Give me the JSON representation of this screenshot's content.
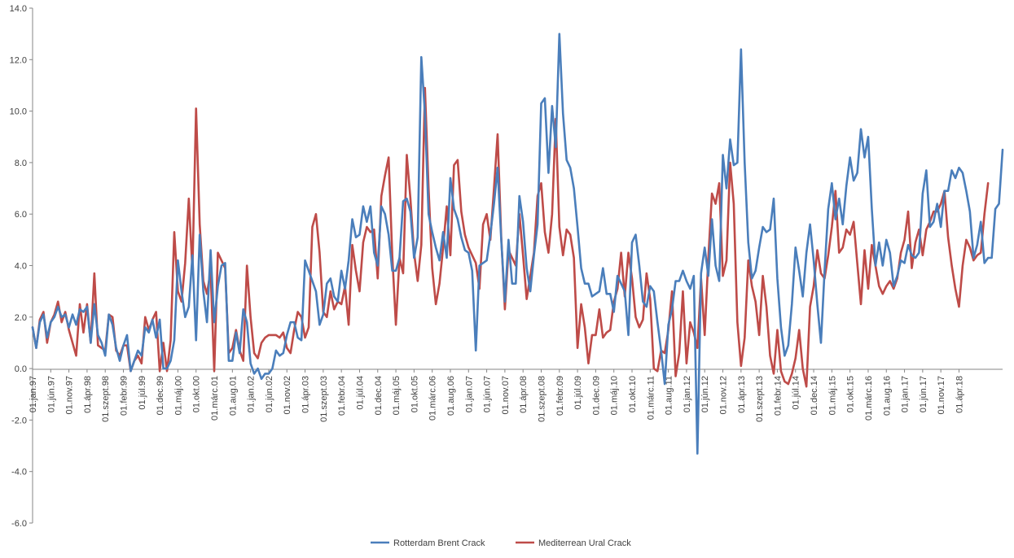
{
  "chart_data": {
    "type": "line",
    "title": "",
    "xlabel": "",
    "ylabel": "",
    "ylim": [
      -6.0,
      14.0
    ],
    "y_ticks": [
      "14.0",
      "12.0",
      "10.0",
      "8.0",
      "6.0",
      "4.0",
      "2.0",
      "0.0",
      "-2.0",
      "-4.0",
      "-6.0"
    ],
    "x_start": "1997-01",
    "x_end": "2018-08",
    "x_tick_step_months": 5,
    "x_tick_labels": [
      "01.jan.97",
      "01.jún.97",
      "01.nov.97",
      "01.ápr.98",
      "01.szept.98",
      "01.febr.99",
      "01.júl.99",
      "01.dec.99",
      "01.máj.00",
      "01.okt.00",
      "01.márc.01",
      "01.aug.01",
      "01.jan.02",
      "01.jún.02",
      "01.nov.02",
      "01.ápr.03",
      "01.szept.03",
      "01.febr.04",
      "01.júl.04",
      "01.dec.04",
      "01.máj.05",
      "01.okt.05",
      "01.márc.06",
      "01.aug.06",
      "01.jan.07",
      "01.jún.07",
      "01.nov.07",
      "01.ápr.08",
      "01.szept.08",
      "01.febr.09",
      "01.júl.09",
      "01.dec.09",
      "01.máj.10",
      "01.okt.10",
      "01.márc.11",
      "01.aug.11",
      "01.jan.12",
      "01.jún.12",
      "01.nov.12",
      "01.ápr.13",
      "01.szept.13",
      "01.febr.14",
      "01.júl.14",
      "01.dec.14",
      "01.máj.15",
      "01.okt.15",
      "01.márc.16",
      "01.aug.16",
      "01.jan.17",
      "01.jún.17",
      "01.nov.17",
      "01.ápr.18"
    ],
    "grid": false,
    "legend_position": "bottom",
    "series": [
      {
        "name": "Rotterdam Brent Crack",
        "color": "#4a7ebb",
        "values": [
          1.6,
          0.8,
          1.8,
          2.1,
          1.2,
          1.8,
          2.0,
          2.4,
          2.0,
          2.1,
          1.6,
          2.1,
          1.7,
          2.3,
          2.2,
          2.4,
          1.0,
          2.5,
          1.3,
          1.0,
          0.5,
          2.1,
          1.7,
          0.8,
          0.3,
          0.9,
          1.3,
          -0.1,
          0.3,
          0.7,
          0.5,
          1.6,
          1.4,
          1.9,
          1.2,
          1.9,
          0.0,
          0.0,
          0.3,
          1.1,
          4.2,
          3.0,
          2.0,
          2.4,
          4.4,
          1.1,
          5.2,
          3.0,
          1.8,
          4.6,
          1.8,
          3.2,
          4.0,
          4.1,
          0.3,
          0.3,
          1.4,
          0.6,
          2.3,
          1.8,
          0.2,
          -0.2,
          0.0,
          -0.4,
          -0.2,
          -0.2,
          0.0,
          0.7,
          0.5,
          0.6,
          1.3,
          1.8,
          1.8,
          1.2,
          1.1,
          4.2,
          3.8,
          3.4,
          3.0,
          1.7,
          2.1,
          3.3,
          3.5,
          2.8,
          2.6,
          3.8,
          3.1,
          4.2,
          5.8,
          5.1,
          5.2,
          6.3,
          5.7,
          6.3,
          4.5,
          4.0,
          6.3,
          6.0,
          5.2,
          3.8,
          3.8,
          4.3,
          6.5,
          6.6,
          6.1,
          4.3,
          5.1,
          12.1,
          9.9,
          6.0,
          5.3,
          4.7,
          4.2,
          5.3,
          4.3,
          7.4,
          6.2,
          5.8,
          5.1,
          4.6,
          4.5,
          3.8,
          0.7,
          4.0,
          4.1,
          4.2,
          5.2,
          6.4,
          7.8,
          5.0,
          2.6,
          5.0,
          3.3,
          3.3,
          6.7,
          5.7,
          3.9,
          3.0,
          4.4,
          5.6,
          10.3,
          10.5,
          7.6,
          10.2,
          8.6,
          13.0,
          9.9,
          8.1,
          7.8,
          7.0,
          5.5,
          3.9,
          3.3,
          3.3,
          2.8,
          2.9,
          3.0,
          3.9,
          2.9,
          2.9,
          2.2,
          3.6,
          3.3,
          3.0,
          1.3,
          4.9,
          5.2,
          4.0,
          2.6,
          2.4,
          3.2,
          3.0,
          1.8,
          0.7,
          -0.6,
          1.7,
          2.3,
          3.4,
          3.4,
          3.8,
          3.4,
          3.1,
          3.6,
          -3.3,
          3.7,
          4.7,
          3.6,
          5.8,
          4.0,
          3.4,
          8.3,
          7.0,
          8.9,
          7.9,
          8.0,
          12.4,
          8.0,
          4.9,
          3.5,
          3.8,
          4.7,
          5.5,
          5.3,
          5.4,
          6.6,
          3.5,
          1.6,
          0.5,
          0.9,
          2.5,
          4.7,
          3.8,
          2.8,
          4.5,
          5.6,
          4.2,
          2.5,
          1.0,
          3.8,
          6.2,
          7.2,
          5.8,
          6.6,
          5.6,
          7.1,
          8.2,
          7.3,
          7.6,
          9.3,
          8.2,
          9.0,
          6.2,
          4.0,
          4.9,
          4.0,
          5.0,
          4.5,
          3.2,
          3.6,
          4.2,
          4.1,
          4.8,
          4.4,
          4.3,
          4.5,
          6.8,
          7.7,
          5.5,
          5.7,
          6.4,
          5.5,
          6.9,
          6.9,
          7.7,
          7.4,
          7.8,
          7.6,
          6.9,
          6.1,
          4.3,
          4.8,
          5.7,
          4.1,
          4.3,
          4.3,
          6.2,
          6.4,
          8.5
        ]
      },
      {
        "name": "Mediterrean Ural Crack",
        "color": "#be4b48",
        "values": [
          1.6,
          0.8,
          1.9,
          2.2,
          1.0,
          1.8,
          2.1,
          2.6,
          1.8,
          2.2,
          1.5,
          1.0,
          0.5,
          2.5,
          1.4,
          2.5,
          1.0,
          3.7,
          0.9,
          0.8,
          0.7,
          2.1,
          2.0,
          0.7,
          0.5,
          0.9,
          0.9,
          -0.1,
          0.3,
          0.5,
          0.2,
          2.0,
          1.5,
          1.9,
          2.2,
          -0.1,
          1.0,
          -0.1,
          1.1,
          5.3,
          3.0,
          2.6,
          4.1,
          6.6,
          3.8,
          10.1,
          5.6,
          3.4,
          2.9,
          3.8,
          -0.1,
          4.5,
          4.2,
          3.9,
          0.6,
          0.8,
          1.5,
          0.7,
          0.3,
          4.0,
          2.0,
          0.6,
          0.4,
          1.0,
          1.2,
          1.3,
          1.3,
          1.3,
          1.2,
          1.4,
          0.8,
          0.6,
          1.5,
          2.2,
          2.0,
          1.2,
          1.6,
          5.5,
          6.0,
          4.5,
          2.2,
          2.0,
          3.0,
          2.3,
          2.6,
          2.5,
          3.2,
          1.7,
          4.8,
          3.8,
          3.0,
          4.9,
          5.5,
          5.3,
          5.4,
          3.5,
          6.7,
          7.5,
          8.2,
          4.4,
          1.7,
          4.3,
          3.7,
          8.3,
          6.6,
          4.5,
          3.4,
          4.8,
          10.9,
          7.0,
          3.9,
          2.5,
          3.3,
          4.7,
          6.3,
          4.4,
          7.9,
          8.1,
          6.1,
          5.2,
          4.7,
          4.4,
          4.1,
          3.1,
          5.6,
          6.0,
          5.0,
          7.0,
          9.1,
          5.1,
          2.3,
          4.6,
          4.3,
          4.0,
          6.0,
          4.4,
          2.7,
          3.6,
          4.5,
          6.7,
          7.2,
          5.3,
          4.5,
          6.0,
          9.7,
          5.5,
          4.4,
          5.4,
          5.2,
          4.3,
          0.8,
          2.5,
          1.6,
          0.2,
          1.3,
          1.3,
          2.3,
          1.2,
          1.4,
          1.5,
          2.6,
          3.1,
          4.5,
          2.8,
          4.5,
          3.5,
          2.0,
          1.6,
          1.9,
          3.7,
          2.7,
          0.0,
          -0.1,
          0.7,
          0.6,
          1.5,
          3.0,
          -0.3,
          0.6,
          3.0,
          0.2,
          1.8,
          1.4,
          0.8,
          3.5,
          1.3,
          4.3,
          6.8,
          6.4,
          7.2,
          3.6,
          4.2,
          8.0,
          6.4,
          1.8,
          0.1,
          1.2,
          4.2,
          3.2,
          2.6,
          1.3,
          3.6,
          2.4,
          0.5,
          -0.2,
          1.5,
          -0.1,
          -0.5,
          -0.6,
          -0.2,
          0.4,
          1.5,
          0.0,
          -0.7,
          2.4,
          3.2,
          4.6,
          3.7,
          3.5,
          4.4,
          5.5,
          6.9,
          4.5,
          4.7,
          5.4,
          5.2,
          5.7,
          4.1,
          2.5,
          4.6,
          3.1,
          4.8,
          4.0,
          3.2,
          2.9,
          3.2,
          3.4,
          3.1,
          3.5,
          4.5,
          5.0,
          6.1,
          3.9,
          4.9,
          5.4,
          4.4,
          5.4,
          5.7,
          6.1,
          6.1,
          6.4,
          6.9,
          5.1,
          4.0,
          3.1,
          2.4,
          4.0,
          5.0,
          4.7,
          4.2,
          4.4,
          4.5,
          6.0,
          7.2
        ]
      }
    ]
  }
}
